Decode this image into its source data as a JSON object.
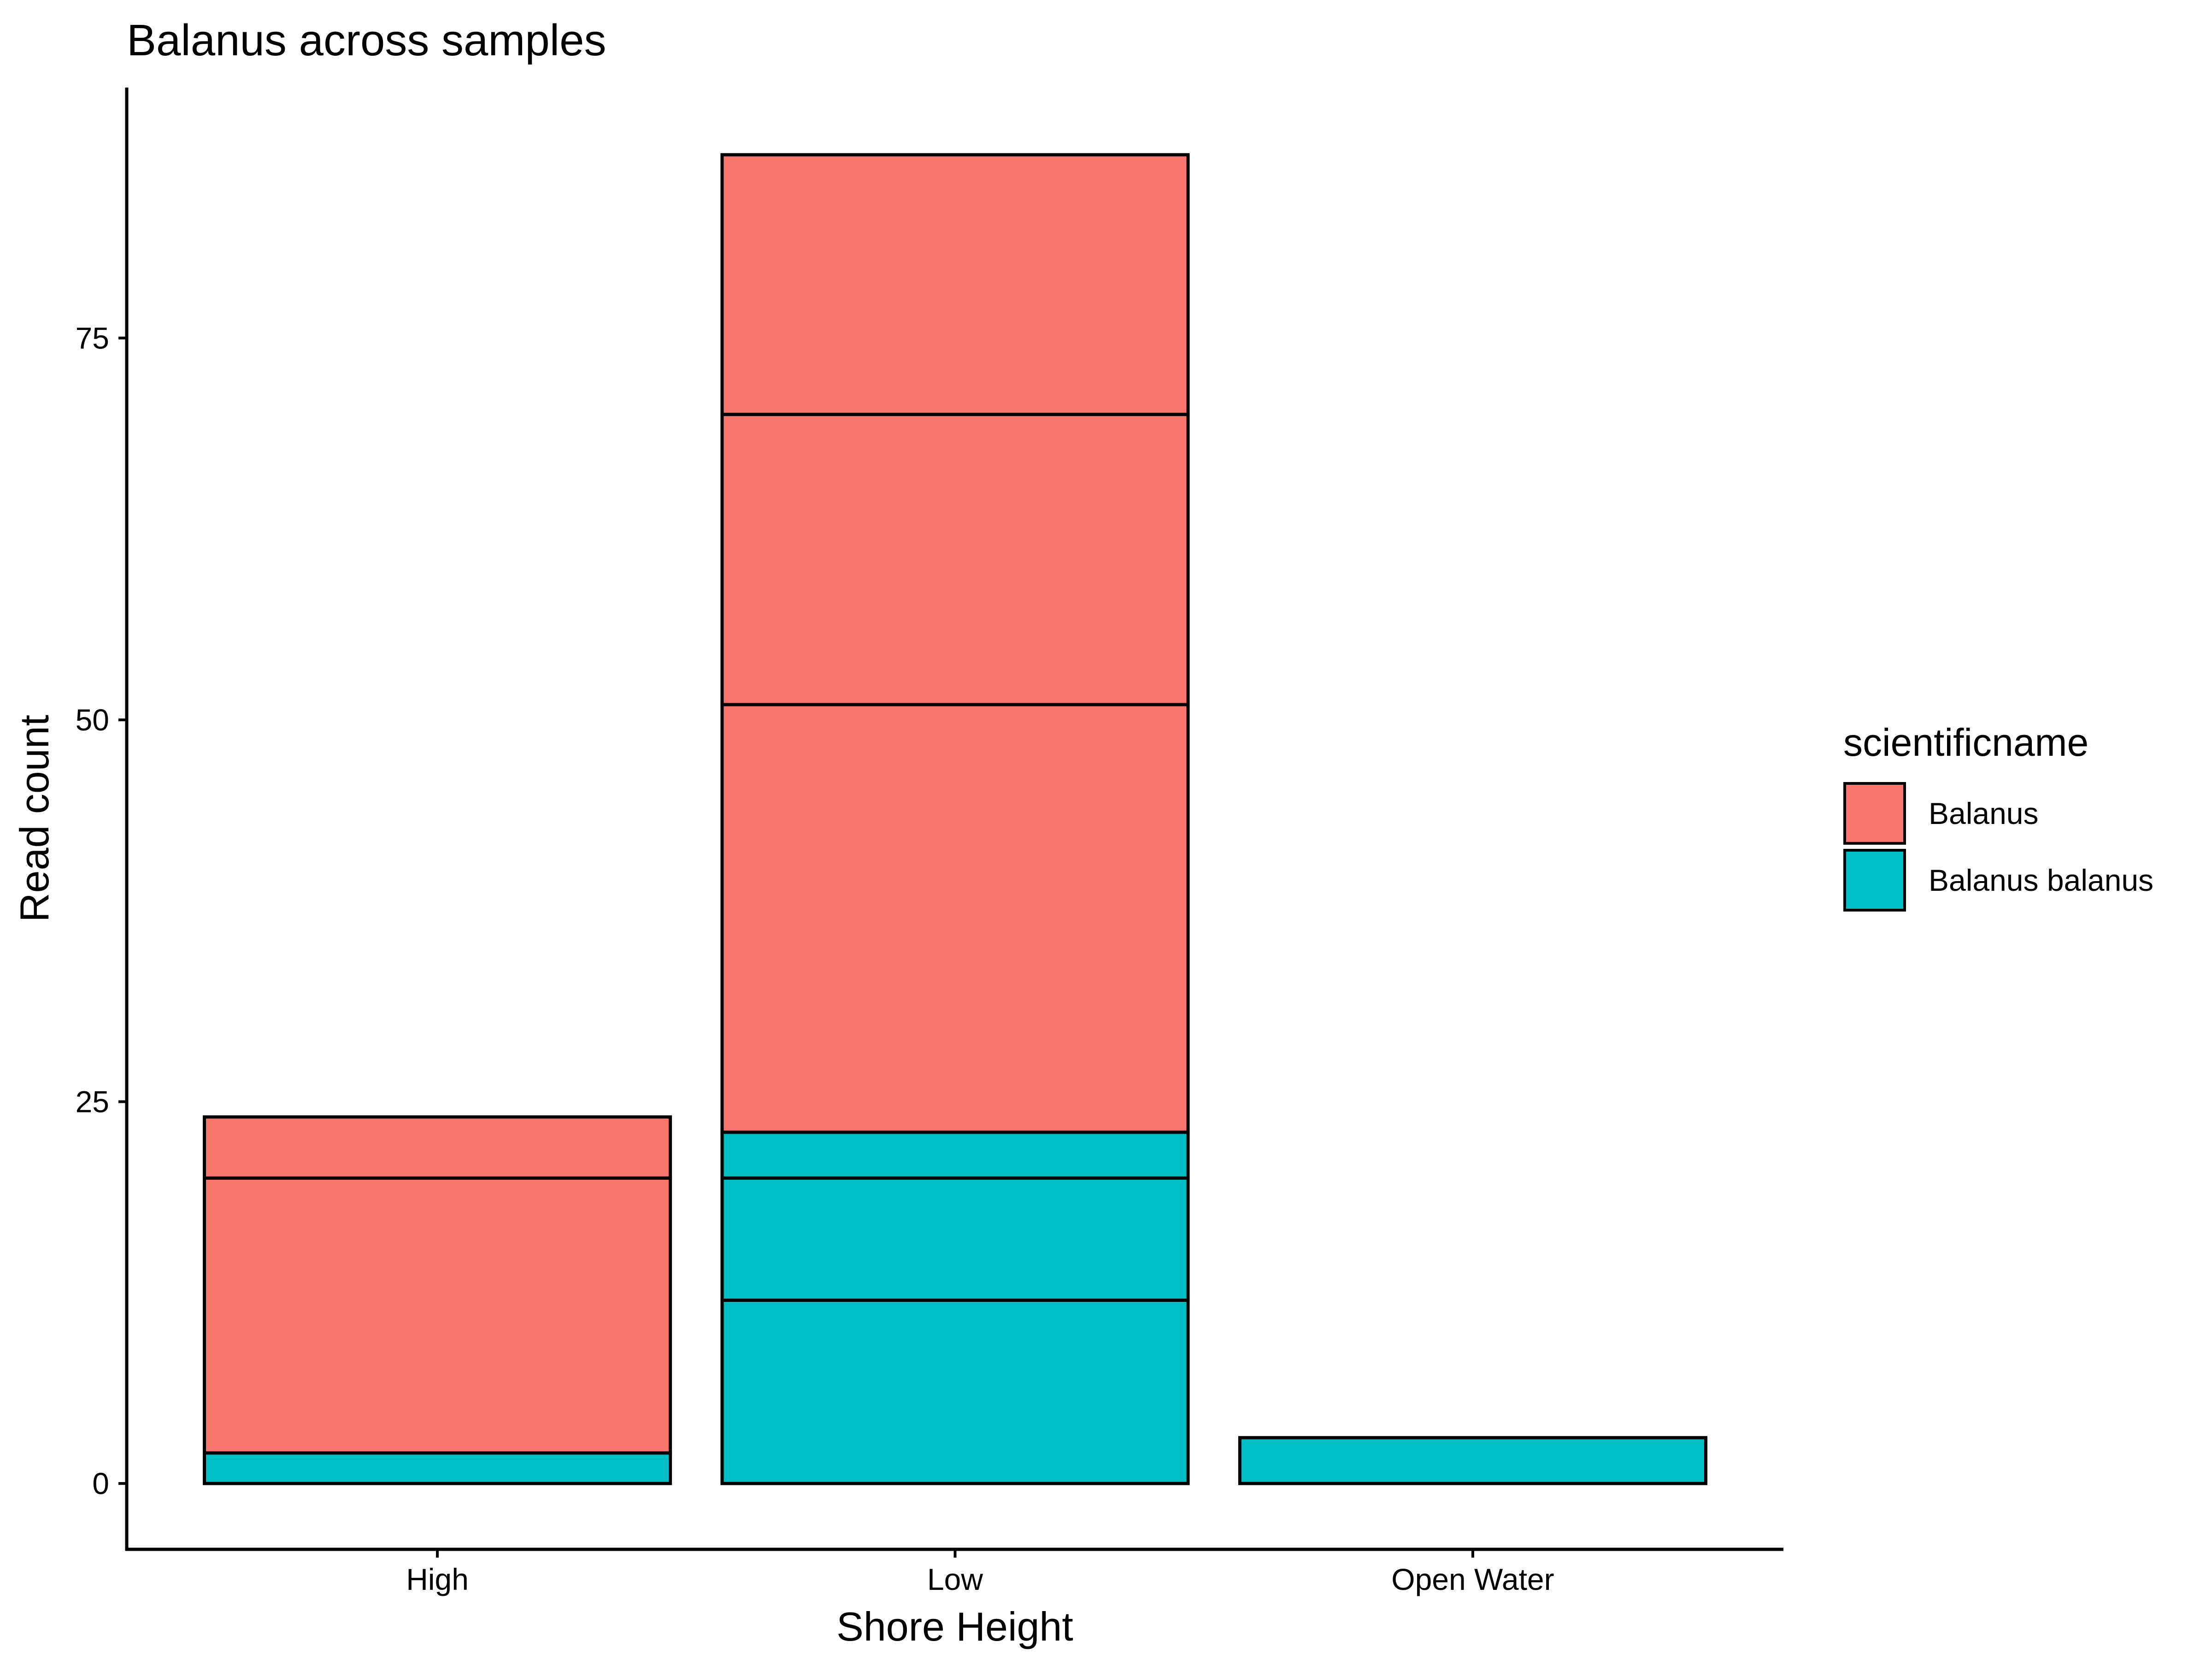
{
  "chart_data": {
    "type": "bar",
    "stacked": true,
    "title": "Balanus across samples",
    "xlabel": "Shore Height",
    "ylabel": "Read count",
    "categories": [
      "High",
      "Low",
      "Open Water"
    ],
    "y_ticks": [
      0,
      25,
      50,
      75
    ],
    "ylim": [
      -4.4,
      91.4
    ],
    "grid": false,
    "legend": {
      "title": "scientificname",
      "position": "right",
      "entries": [
        {
          "name": "Balanus",
          "color": "#F8766D"
        },
        {
          "name": "Balanus balanus",
          "color": "#00BFC4"
        }
      ]
    },
    "segments": [
      {
        "category": "High",
        "series": "Balanus balanus",
        "value": 2
      },
      {
        "category": "High",
        "series": "Balanus",
        "value": 18
      },
      {
        "category": "High",
        "series": "Balanus",
        "value": 4
      },
      {
        "category": "Low",
        "series": "Balanus balanus",
        "value": 12
      },
      {
        "category": "Low",
        "series": "Balanus balanus",
        "value": 8
      },
      {
        "category": "Low",
        "series": "Balanus balanus",
        "value": 3
      },
      {
        "category": "Low",
        "series": "Balanus",
        "value": 28
      },
      {
        "category": "Low",
        "series": "Balanus",
        "value": 19
      },
      {
        "category": "Low",
        "series": "Balanus",
        "value": 17
      },
      {
        "category": "Open Water",
        "series": "Balanus balanus",
        "value": 3
      }
    ]
  }
}
